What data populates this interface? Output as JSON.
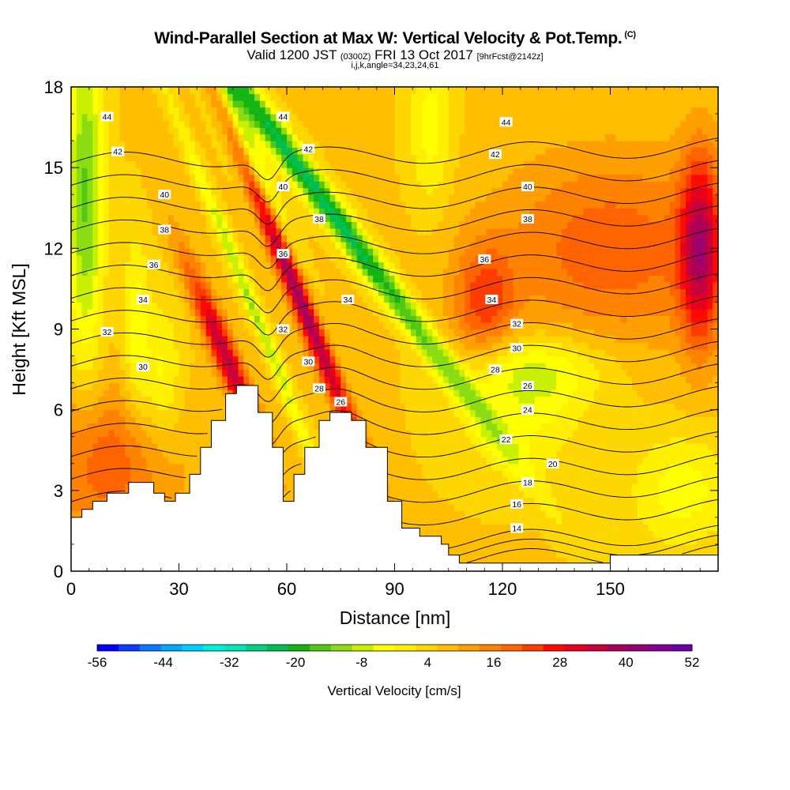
{
  "title": {
    "main": "Wind-Parallel Section at Max W: Vertical Velocity & Pot.Temp.",
    "mark": "(C)",
    "valid_a": "Valid 1200 JST",
    "valid_b": "(0300Z)",
    "valid_c": "FRI 13 Oct 2017",
    "valid_d": "[9hrFcst@2142z]",
    "indices": "i,j,k,angle=34,23,24,61"
  },
  "chart_data": {
    "type": "heatmap",
    "xlabel": "Distance [nm]",
    "ylabel": "Height [Kft MSL]",
    "xlim": [
      0,
      180
    ],
    "ylim": [
      0,
      18
    ],
    "xticks": [
      "0",
      "30",
      "60",
      "90",
      "120",
      "150"
    ],
    "yticks": [
      "0",
      "3",
      "6",
      "9",
      "12",
      "15",
      "18"
    ],
    "colorbar": {
      "label": "Vertical Velocity [cm/s]",
      "ticks": [
        "-56",
        "-44",
        "-32",
        "-20",
        "-8",
        "4",
        "16",
        "28",
        "40",
        "52"
      ],
      "range": [
        -56,
        52
      ],
      "colors": [
        "#0000ff",
        "#0a3cff",
        "#0a78ff",
        "#00a8ff",
        "#00d0ff",
        "#00f0e0",
        "#00e6b4",
        "#00d282",
        "#00be50",
        "#14b414",
        "#50c814",
        "#8cdc14",
        "#c8f000",
        "#ffff00",
        "#fff000",
        "#ffd700",
        "#ffbe00",
        "#ffa000",
        "#ff8200",
        "#ff6400",
        "#ff3c00",
        "#ff0a00",
        "#e6001e",
        "#c8003c",
        "#aa005a",
        "#960078",
        "#820096",
        "#6e00aa"
      ]
    },
    "field": {
      "variable": "Vertical Velocity",
      "units": "cm/s",
      "features": [
        {
          "x": 55,
          "y": 13.0,
          "sx": 2.2,
          "sy": 6.0,
          "tilt": -0.3,
          "value": 44
        },
        {
          "x": 47,
          "y": 16.0,
          "sx": 2.8,
          "sy": 3.0,
          "tilt": -0.3,
          "value": -34
        },
        {
          "x": 50,
          "y": 10.0,
          "sx": 1.4,
          "sy": 5.0,
          "tilt": -0.3,
          "value": -16
        },
        {
          "x": 69,
          "y": 14.0,
          "sx": 3.2,
          "sy": 6.0,
          "tilt": -0.55,
          "value": -30
        },
        {
          "x": 43,
          "y": 8.0,
          "sx": 2.5,
          "sy": 2.5,
          "tilt": -0.3,
          "value": 30
        },
        {
          "x": 4,
          "y": 14.0,
          "sx": 3.5,
          "sy": 4.5,
          "tilt": 0.0,
          "value": -20
        },
        {
          "x": 100,
          "y": 16.5,
          "sx": 4.0,
          "sy": 2.0,
          "tilt": 0.0,
          "value": -10
        },
        {
          "x": 130,
          "y": 7.5,
          "sx": 14,
          "sy": 1.0,
          "tilt": 0.0,
          "value": -12
        },
        {
          "x": 125,
          "y": 5.5,
          "sx": 12,
          "sy": 1.5,
          "tilt": 0.0,
          "value": -8
        },
        {
          "x": 170,
          "y": 3.0,
          "sx": 10,
          "sy": 1.5,
          "tilt": 0.0,
          "value": -10
        },
        {
          "x": 150,
          "y": 12.0,
          "sx": 22,
          "sy": 2.5,
          "tilt": 0.0,
          "value": 14
        },
        {
          "x": 175,
          "y": 12.0,
          "sx": 4.0,
          "sy": 2.5,
          "tilt": 0.0,
          "value": 28
        },
        {
          "x": 115,
          "y": 10.0,
          "sx": 6.0,
          "sy": 1.5,
          "tilt": 0.0,
          "value": 16
        },
        {
          "x": 10,
          "y": 4.0,
          "sx": 14,
          "sy": 2.0,
          "tilt": 0.0,
          "value": 14
        },
        {
          "x": 25,
          "y": 7.0,
          "sx": 4.0,
          "sy": 2.0,
          "tilt": 0.0,
          "value": -10
        },
        {
          "x": 18,
          "y": 9.0,
          "sx": 2.5,
          "sy": 2.5,
          "tilt": 0.0,
          "value": -10
        }
      ],
      "background": 6
    },
    "terrain": [
      [
        0,
        2
      ],
      [
        3,
        2
      ],
      [
        3,
        2.3
      ],
      [
        6,
        2.3
      ],
      [
        6,
        2.6
      ],
      [
        10,
        2.6
      ],
      [
        10,
        2.9
      ],
      [
        16,
        2.9
      ],
      [
        16,
        3.3
      ],
      [
        23,
        3.3
      ],
      [
        23,
        2.9
      ],
      [
        26,
        2.9
      ],
      [
        26,
        2.6
      ],
      [
        29,
        2.6
      ],
      [
        29,
        2.9
      ],
      [
        33,
        2.9
      ],
      [
        33,
        3.6
      ],
      [
        36,
        3.6
      ],
      [
        36,
        4.6
      ],
      [
        39,
        4.6
      ],
      [
        39,
        5.6
      ],
      [
        43,
        5.6
      ],
      [
        43,
        6.6
      ],
      [
        46,
        6.6
      ],
      [
        46,
        6.9
      ],
      [
        52,
        6.9
      ],
      [
        52,
        5.9
      ],
      [
        56,
        5.9
      ],
      [
        56,
        4.6
      ],
      [
        59,
        4.6
      ],
      [
        59,
        2.6
      ],
      [
        62,
        2.6
      ],
      [
        62,
        3.6
      ],
      [
        65,
        3.6
      ],
      [
        65,
        4.6
      ],
      [
        69,
        4.6
      ],
      [
        69,
        5.6
      ],
      [
        72,
        5.6
      ],
      [
        72,
        5.9
      ],
      [
        78,
        5.9
      ],
      [
        78,
        5.6
      ],
      [
        82,
        5.6
      ],
      [
        82,
        4.6
      ],
      [
        88,
        4.6
      ],
      [
        88,
        2.6
      ],
      [
        92,
        2.6
      ],
      [
        92,
        1.6
      ],
      [
        97,
        1.6
      ],
      [
        97,
        1.3
      ],
      [
        103,
        1.3
      ],
      [
        103,
        1.0
      ],
      [
        105,
        1.0
      ],
      [
        105,
        0.6
      ],
      [
        108,
        0.6
      ],
      [
        108,
        0.3
      ],
      [
        150,
        0.3
      ],
      [
        150,
        0.6
      ],
      [
        180,
        0.6
      ]
    ],
    "theta_contours": {
      "levels": [
        8,
        10,
        12,
        14,
        16,
        18,
        20,
        22,
        24,
        26,
        28,
        30,
        32,
        34,
        36,
        38,
        40,
        42,
        44,
        46
      ],
      "labels": [
        {
          "text": "44",
          "x": 10,
          "y": 16.9
        },
        {
          "text": "42",
          "x": 13,
          "y": 15.6
        },
        {
          "text": "40",
          "x": 26,
          "y": 14.0
        },
        {
          "text": "38",
          "x": 26,
          "y": 12.7
        },
        {
          "text": "36",
          "x": 23,
          "y": 11.4
        },
        {
          "text": "34",
          "x": 20,
          "y": 10.1
        },
        {
          "text": "32",
          "x": 10,
          "y": 8.9
        },
        {
          "text": "30",
          "x": 20,
          "y": 7.6
        },
        {
          "text": "44",
          "x": 59,
          "y": 16.9
        },
        {
          "text": "42",
          "x": 66,
          "y": 15.7
        },
        {
          "text": "40",
          "x": 59,
          "y": 14.3
        },
        {
          "text": "38",
          "x": 69,
          "y": 13.1
        },
        {
          "text": "36",
          "x": 59,
          "y": 11.8
        },
        {
          "text": "34",
          "x": 77,
          "y": 10.1
        },
        {
          "text": "32",
          "x": 59,
          "y": 9.0
        },
        {
          "text": "30",
          "x": 66,
          "y": 7.8
        },
        {
          "text": "28",
          "x": 69,
          "y": 6.8
        },
        {
          "text": "26",
          "x": 75,
          "y": 6.3
        },
        {
          "text": "44",
          "x": 121,
          "y": 16.7
        },
        {
          "text": "42",
          "x": 118,
          "y": 15.5
        },
        {
          "text": "40",
          "x": 127,
          "y": 14.3
        },
        {
          "text": "38",
          "x": 127,
          "y": 13.1
        },
        {
          "text": "36",
          "x": 115,
          "y": 11.6
        },
        {
          "text": "34",
          "x": 117,
          "y": 10.1
        },
        {
          "text": "32",
          "x": 124,
          "y": 9.2
        },
        {
          "text": "30",
          "x": 124,
          "y": 8.3
        },
        {
          "text": "28",
          "x": 118,
          "y": 7.5
        },
        {
          "text": "26",
          "x": 127,
          "y": 6.9
        },
        {
          "text": "24",
          "x": 127,
          "y": 6.0
        },
        {
          "text": "22",
          "x": 121,
          "y": 4.9
        },
        {
          "text": "20",
          "x": 134,
          "y": 4.0
        },
        {
          "text": "18",
          "x": 127,
          "y": 3.3
        },
        {
          "text": "16",
          "x": 124,
          "y": 2.5
        },
        {
          "text": "14",
          "x": 124,
          "y": 1.6
        }
      ]
    }
  }
}
